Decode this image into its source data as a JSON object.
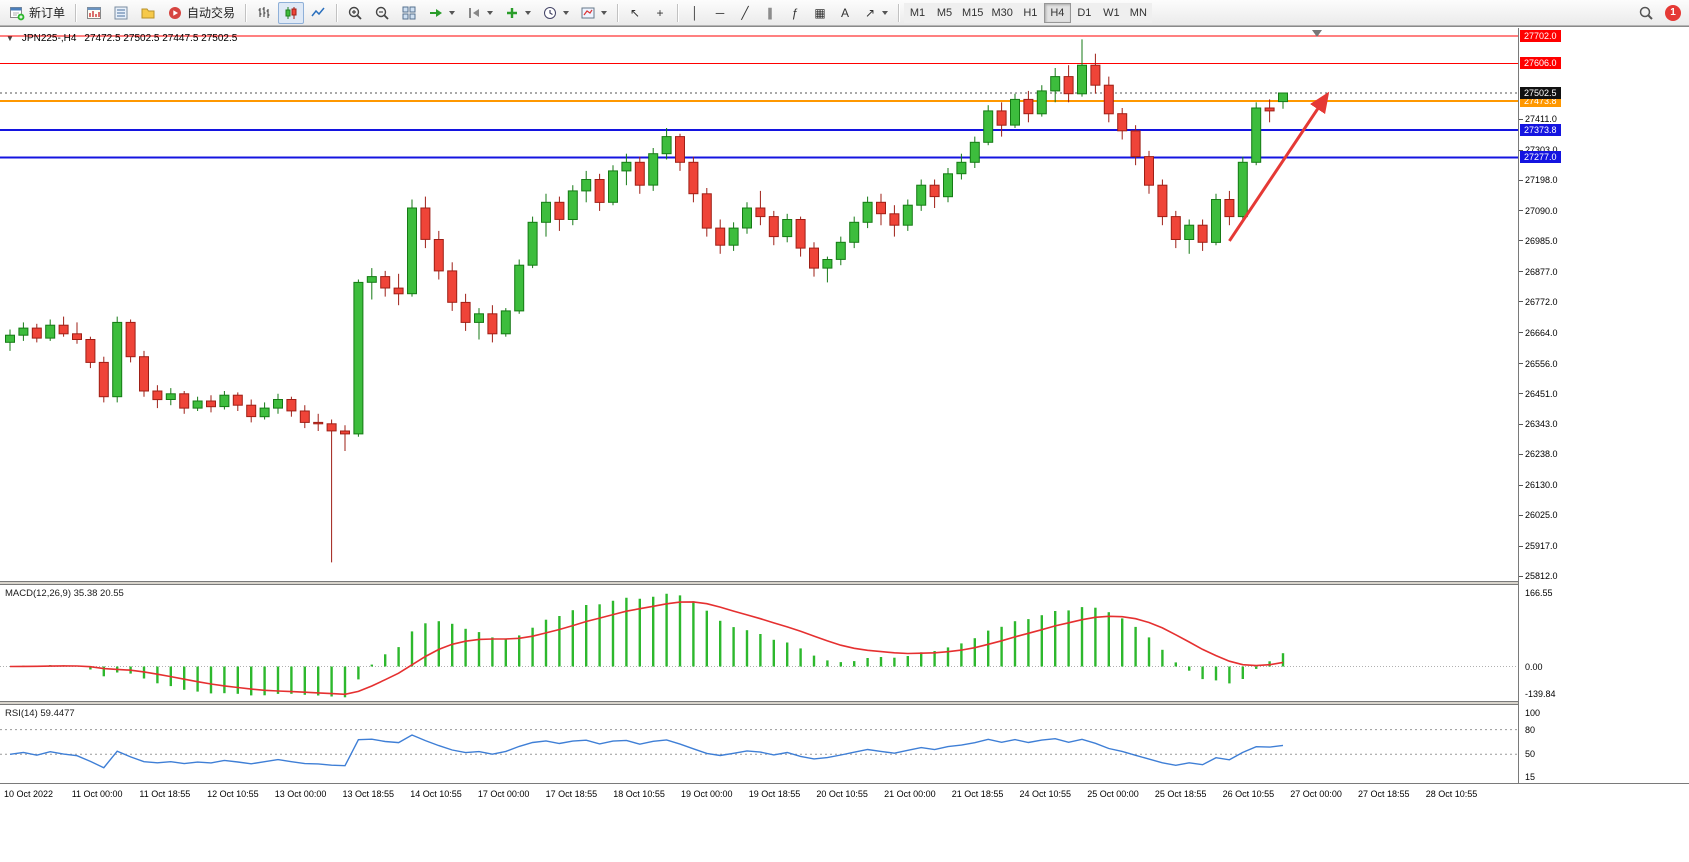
{
  "toolbar": {
    "new_order_label": "新订单",
    "autotrading_label": "自动交易",
    "notification_count": "1",
    "timeframes": [
      "M1",
      "M5",
      "M15",
      "M30",
      "H1",
      "H4",
      "D1",
      "W1",
      "MN"
    ],
    "active_timeframe": "H4",
    "glyphs": {
      "chart_menu": "▼",
      "cursor": "↖",
      "crosshair": "+",
      "vertical_line": "│",
      "horizontal_line": "─",
      "trendline": "╱",
      "channel": "∥",
      "fibonacci": "ƒ",
      "shapes": "▦",
      "text": "A",
      "arrows": "↗"
    },
    "icons": [
      "new-order-icon",
      "chart-window-icon",
      "market-watch-icon",
      "navigator-icon",
      "autotrading-icon",
      "bar-chart-icon",
      "candlestick-icon",
      "line-chart-icon",
      "zoom-in-icon",
      "zoom-out-icon",
      "tile-windows-icon",
      "auto-scroll-icon",
      "chart-shift-icon",
      "add-indicator-icon",
      "periods-icon",
      "template-icon",
      "search-icon"
    ]
  },
  "chart": {
    "symbol_label": "JPN225-,H4",
    "ohlc_label": "27472.5 27502.5 27447.5 27502.5",
    "current_price": {
      "value": 27502.5,
      "label": "27502.5",
      "bg": "#111111"
    },
    "hlines": [
      {
        "price": 27702.0,
        "label": "27702.0",
        "color": "#ff0000",
        "width": 1.2
      },
      {
        "price": 27606.0,
        "label": "27606.0",
        "color": "#ff0000",
        "width": 1.2
      },
      {
        "price": 27473.8,
        "label": "27473.8",
        "color": "#ff9800",
        "width": 2
      },
      {
        "price": 27373.8,
        "label": "27373.8",
        "color": "#1414e0",
        "width": 2
      },
      {
        "price": 27277.0,
        "label": "27277.0",
        "color": "#1414e0",
        "width": 2
      }
    ],
    "price_axis_ticks": [
      "27411.0",
      "27303.0",
      "27198.0",
      "27090.0",
      "26985.0",
      "26877.0",
      "26772.0",
      "26664.0",
      "26556.0",
      "26451.0",
      "26343.0",
      "26238.0",
      "26130.0",
      "26025.0",
      "25917.0",
      "25812.0"
    ],
    "time_axis_labels": [
      "10 Oct 2022",
      "11 Oct 00:00",
      "11 Oct 18:55",
      "12 Oct 10:55",
      "13 Oct 00:00",
      "13 Oct 18:55",
      "14 Oct 10:55",
      "17 Oct 00:00",
      "17 Oct 18:55",
      "18 Oct 10:55",
      "19 Oct 00:00",
      "19 Oct 18:55",
      "20 Oct 10:55",
      "21 Oct 00:00",
      "21 Oct 18:55",
      "24 Oct 10:55",
      "25 Oct 00:00",
      "25 Oct 18:55",
      "26 Oct 10:55",
      "27 Oct 00:00",
      "27 Oct 18:55",
      "28 Oct 10:55"
    ],
    "arrow_annotation": {
      "from_index": 91,
      "from_price": 26985,
      "to_index": 98.2,
      "to_price": 27490,
      "color": "#e53935"
    }
  },
  "macd_panel": {
    "label": "MACD(12,26,9) 35.38 20.55",
    "axis_labels": [
      "166.55",
      "0.00",
      "-139.84"
    ],
    "histogram_color": "#2db82d",
    "signal_color": "#e53030"
  },
  "rsi_panel": {
    "label": "RSI(14) 59.4477",
    "axis_labels": [
      "100",
      "80",
      "50",
      "15"
    ],
    "levels": [
      80,
      50
    ],
    "range": [
      15,
      110
    ],
    "line_color": "#3f7fd6"
  },
  "chart_data": {
    "type": "candlestick",
    "symbol": "JPN225-",
    "timeframe": "H4",
    "title": "JPN225-,H4",
    "price_range": [
      25795,
      27730
    ],
    "up_color": "#3dbd3d",
    "down_color": "#ef4438",
    "last_ohlc": {
      "open": 27472.5,
      "high": 27502.5,
      "low": 27447.5,
      "close": 27502.5
    },
    "indicators": [
      {
        "name": "MACD",
        "params": [
          12,
          26,
          9
        ],
        "values": [
          35.38,
          20.55
        ],
        "axis": [
          166.55,
          0.0,
          -139.84
        ]
      },
      {
        "name": "RSI",
        "params": [
          14
        ],
        "value": 59.4477,
        "levels": [
          80,
          50
        ]
      }
    ],
    "horizontal_levels": [
      27702.0,
      27606.0,
      27473.8,
      27373.8,
      27277.0
    ],
    "candles_ohlc": [
      [
        26630,
        26675,
        26600,
        26655
      ],
      [
        26655,
        26700,
        26635,
        26680
      ],
      [
        26680,
        26695,
        26630,
        26645
      ],
      [
        26645,
        26710,
        26635,
        26690
      ],
      [
        26690,
        26720,
        26650,
        26660
      ],
      [
        26660,
        26700,
        26625,
        26640
      ],
      [
        26640,
        26650,
        26540,
        26560
      ],
      [
        26560,
        26580,
        26420,
        26440
      ],
      [
        26440,
        26720,
        26420,
        26700
      ],
      [
        26700,
        26710,
        26560,
        26580
      ],
      [
        26580,
        26600,
        26440,
        26460
      ],
      [
        26460,
        26480,
        26400,
        26430
      ],
      [
        26430,
        26470,
        26410,
        26450
      ],
      [
        26450,
        26460,
        26380,
        26400
      ],
      [
        26400,
        26440,
        26390,
        26425
      ],
      [
        26425,
        26445,
        26385,
        26405
      ],
      [
        26405,
        26460,
        26395,
        26445
      ],
      [
        26445,
        26455,
        26390,
        26410
      ],
      [
        26410,
        26430,
        26350,
        26370
      ],
      [
        26370,
        26420,
        26360,
        26400
      ],
      [
        26400,
        26450,
        26380,
        26430
      ],
      [
        26430,
        26440,
        26370,
        26390
      ],
      [
        26390,
        26410,
        26330,
        26350
      ],
      [
        26350,
        26380,
        26320,
        26345
      ],
      [
        26345,
        26360,
        25860,
        26320
      ],
      [
        26320,
        26340,
        26250,
        26310
      ],
      [
        26310,
        26850,
        26300,
        26840
      ],
      [
        26840,
        26890,
        26780,
        26860
      ],
      [
        26860,
        26880,
        26790,
        26820
      ],
      [
        26820,
        26870,
        26760,
        26800
      ],
      [
        26800,
        27130,
        26790,
        27100
      ],
      [
        27100,
        27140,
        26960,
        26990
      ],
      [
        26990,
        27020,
        26850,
        26880
      ],
      [
        26880,
        26910,
        26740,
        26770
      ],
      [
        26770,
        26800,
        26670,
        26700
      ],
      [
        26700,
        26750,
        26640,
        26730
      ],
      [
        26730,
        26760,
        26630,
        26660
      ],
      [
        26660,
        26750,
        26650,
        26740
      ],
      [
        26740,
        26920,
        26730,
        26900
      ],
      [
        26900,
        27070,
        26890,
        27050
      ],
      [
        27050,
        27150,
        27000,
        27120
      ],
      [
        27120,
        27140,
        27020,
        27060
      ],
      [
        27060,
        27180,
        27040,
        27160
      ],
      [
        27160,
        27230,
        27120,
        27200
      ],
      [
        27200,
        27220,
        27090,
        27120
      ],
      [
        27120,
        27250,
        27110,
        27230
      ],
      [
        27230,
        27290,
        27180,
        27260
      ],
      [
        27260,
        27280,
        27150,
        27180
      ],
      [
        27180,
        27310,
        27160,
        27290
      ],
      [
        27290,
        27380,
        27270,
        27350
      ],
      [
        27350,
        27360,
        27230,
        27260
      ],
      [
        27260,
        27280,
        27120,
        27150
      ],
      [
        27150,
        27170,
        27000,
        27030
      ],
      [
        27030,
        27060,
        26940,
        26970
      ],
      [
        26970,
        27050,
        26950,
        27030
      ],
      [
        27030,
        27120,
        27010,
        27100
      ],
      [
        27100,
        27160,
        27040,
        27070
      ],
      [
        27070,
        27090,
        26970,
        27000
      ],
      [
        27000,
        27080,
        26980,
        27060
      ],
      [
        27060,
        27070,
        26930,
        26960
      ],
      [
        26960,
        26980,
        26860,
        26890
      ],
      [
        26890,
        26930,
        26840,
        26920
      ],
      [
        26920,
        27000,
        26900,
        26980
      ],
      [
        26980,
        27070,
        26960,
        27050
      ],
      [
        27050,
        27140,
        27030,
        27120
      ],
      [
        27120,
        27150,
        27040,
        27080
      ],
      [
        27080,
        27110,
        27000,
        27040
      ],
      [
        27040,
        27130,
        27020,
        27110
      ],
      [
        27110,
        27200,
        27090,
        27180
      ],
      [
        27180,
        27200,
        27100,
        27140
      ],
      [
        27140,
        27240,
        27120,
        27220
      ],
      [
        27220,
        27290,
        27200,
        27260
      ],
      [
        27260,
        27350,
        27240,
        27330
      ],
      [
        27330,
        27460,
        27320,
        27440
      ],
      [
        27440,
        27470,
        27350,
        27390
      ],
      [
        27390,
        27500,
        27380,
        27480
      ],
      [
        27480,
        27510,
        27400,
        27430
      ],
      [
        27430,
        27530,
        27420,
        27510
      ],
      [
        27510,
        27590,
        27470,
        27560
      ],
      [
        27560,
        27600,
        27470,
        27500
      ],
      [
        27500,
        27690,
        27490,
        27600
      ],
      [
        27600,
        27640,
        27500,
        27530
      ],
      [
        27530,
        27560,
        27400,
        27430
      ],
      [
        27430,
        27450,
        27340,
        27370
      ],
      [
        27370,
        27390,
        27250,
        27280
      ],
      [
        27280,
        27300,
        27150,
        27180
      ],
      [
        27180,
        27200,
        27040,
        27070
      ],
      [
        27070,
        27090,
        26960,
        26990
      ],
      [
        26990,
        27060,
        26940,
        27040
      ],
      [
        27040,
        27060,
        26950,
        26980
      ],
      [
        26980,
        27150,
        26970,
        27130
      ],
      [
        27130,
        27160,
        27040,
        27070
      ],
      [
        27070,
        27280,
        27060,
        27260
      ],
      [
        27260,
        27470,
        27250,
        27450
      ],
      [
        27450,
        27480,
        27400,
        27440
      ],
      [
        27472.5,
        27502.5,
        27447.5,
        27502.5
      ]
    ]
  }
}
